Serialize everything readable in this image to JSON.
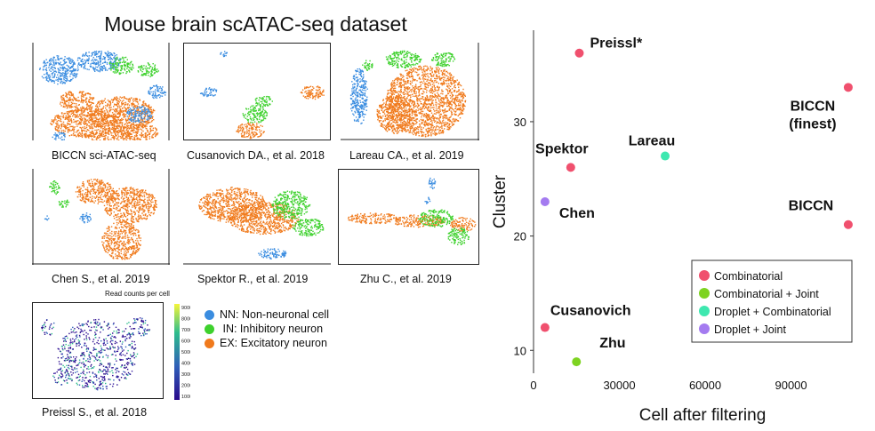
{
  "title": "Mouse brain scATAC-seq dataset",
  "colors": {
    "NN": "#3b8de0",
    "IN": "#3ed12d",
    "EX": "#f07a1c"
  },
  "panels": [
    {
      "caption": "BICCN sci-ATAC-seq"
    },
    {
      "caption": "Cusanovich DA., et al. 2018"
    },
    {
      "caption": "Lareau CA., et al. 2019"
    },
    {
      "caption": "Chen S., et al. 2019"
    },
    {
      "caption": "Spektor R., et al. 2019"
    },
    {
      "caption": "Zhu C., et al. 2019"
    },
    {
      "caption": "Preissl S., et al. 2018"
    }
  ],
  "colorbar": {
    "title": "Read counts per cell",
    "ticks": [
      "9000",
      "8000",
      "7000",
      "6000",
      "5000",
      "4000",
      "3000",
      "2000",
      "1000"
    ]
  },
  "cell_legend": [
    {
      "label": "NN: Non-neuronal cell",
      "color": "#3b8de0"
    },
    {
      "label": " IN: Inhibitory neuron",
      "color": "#3ed12d"
    },
    {
      "label": "EX: Excitatory neuron",
      "color": "#f07a1c"
    }
  ],
  "chart_data": {
    "type": "scatter",
    "xlabel": "Cell after filtering",
    "ylabel": "Cluster",
    "xlim": [
      0,
      115000
    ],
    "ylim": [
      8,
      38
    ],
    "xticks": [
      0,
      30000,
      60000,
      90000
    ],
    "yticks": [
      10,
      20,
      30
    ],
    "points": [
      {
        "label": "Preissl*",
        "x": 16000,
        "y": 36,
        "category": "Combinatorial"
      },
      {
        "label": "BICCN\n(finest)",
        "x": 110000,
        "y": 33,
        "category": "Combinatorial"
      },
      {
        "label": "Spektor",
        "x": 13000,
        "y": 26,
        "category": "Combinatorial"
      },
      {
        "label": "Lareau",
        "x": 46000,
        "y": 27,
        "category": "Droplet + Combinatorial"
      },
      {
        "label": "Chen",
        "x": 4000,
        "y": 23,
        "category": "Droplet + Joint"
      },
      {
        "label": "BICCN",
        "x": 110000,
        "y": 21,
        "category": "Combinatorial"
      },
      {
        "label": "Cusanovich",
        "x": 4000,
        "y": 12,
        "category": "Combinatorial"
      },
      {
        "label": "Zhu",
        "x": 15000,
        "y": 9,
        "category": "Combinatorial + Joint"
      }
    ],
    "legend": [
      {
        "name": "Combinatorial",
        "color": "#f0506e"
      },
      {
        "name": "Combinatorial + Joint",
        "color": "#7ed321"
      },
      {
        "name": "Droplet + Combinatorial",
        "color": "#3ee8b0"
      },
      {
        "name": "Droplet + Joint",
        "color": "#a47bf0"
      }
    ],
    "legend_position": "bottom-right"
  }
}
